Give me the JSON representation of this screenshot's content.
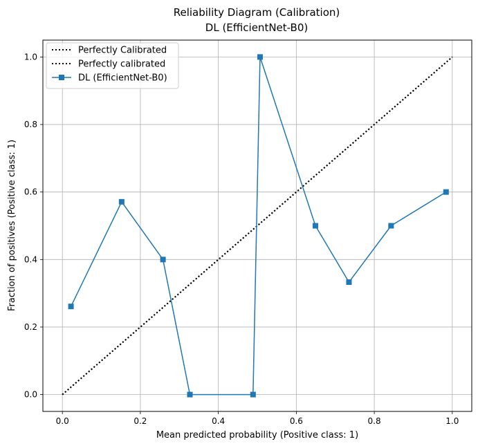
{
  "chart_data": {
    "type": "line",
    "title": "Reliability Diagram (Calibration)",
    "subtitle": "DL (EfficientNet-B0)",
    "xlabel": "Mean predicted probability (Positive class: 1)",
    "ylabel": "Fraction of positives (Positive class: 1)",
    "xlim": [
      -0.05,
      1.05
    ],
    "ylim": [
      -0.05,
      1.05
    ],
    "xticks": [
      "0.0",
      "0.2",
      "0.4",
      "0.6",
      "0.8",
      "1.0"
    ],
    "yticks": [
      "0.0",
      "0.2",
      "0.4",
      "0.6",
      "0.8",
      "1.0"
    ],
    "grid": true,
    "legend_position": "upper-left",
    "series": [
      {
        "name": "Perfectly Calibrated",
        "style": "dotted",
        "color": "#000000",
        "x": [
          0,
          1
        ],
        "y": [
          0,
          1
        ]
      },
      {
        "name": "Perfectly calibrated",
        "style": "dotted",
        "color": "#000000",
        "x": [
          0,
          1
        ],
        "y": [
          0,
          1
        ]
      },
      {
        "name": "DL (EfficientNet-B0)",
        "style": "solid",
        "marker": "square",
        "color": "#1f77b4",
        "x": [
          0.022,
          0.152,
          0.258,
          0.327,
          0.489,
          0.507,
          0.649,
          0.735,
          0.843,
          0.984
        ],
        "y": [
          0.261,
          0.571,
          0.4,
          0.0,
          0.0,
          1.0,
          0.5,
          0.333,
          0.5,
          0.6
        ]
      }
    ]
  }
}
